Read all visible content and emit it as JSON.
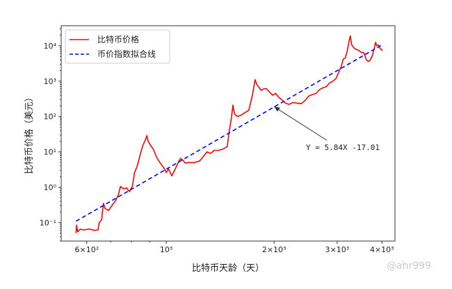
{
  "chart_data": {
    "type": "line",
    "title": "",
    "xlabel": "比特币天龄（天）",
    "ylabel": "比特币价格（美元）",
    "xscale": "log",
    "yscale": "log",
    "xlim": [
      509,
      4350
    ],
    "ylim": [
      0.03,
      37000
    ],
    "grid": false,
    "legend_placement": "top-left",
    "x_ticks": [
      {
        "value": 600,
        "label": "6×10²"
      },
      {
        "value": 1000,
        "label": "10³"
      },
      {
        "value": 2000,
        "label": "2×10³"
      },
      {
        "value": 3000,
        "label": "3×10³"
      },
      {
        "value": 4000,
        "label": "4×10³"
      }
    ],
    "y_ticks": [
      {
        "value": 0.1,
        "label": "10⁻¹"
      },
      {
        "value": 1,
        "label": "10⁰"
      },
      {
        "value": 10,
        "label": "10¹"
      },
      {
        "value": 100,
        "label": "10²"
      },
      {
        "value": 1000,
        "label": "10³"
      },
      {
        "value": 10000,
        "label": "10⁴"
      }
    ],
    "series": [
      {
        "name": "比特币价格",
        "color": "#ff0000",
        "style": "solid",
        "points": [
          [
            560,
            0.05
          ],
          [
            562,
            0.085
          ],
          [
            566,
            0.055
          ],
          [
            575,
            0.065
          ],
          [
            590,
            0.062
          ],
          [
            610,
            0.066
          ],
          [
            630,
            0.06
          ],
          [
            645,
            0.062
          ],
          [
            650,
            0.1
          ],
          [
            660,
            0.12
          ],
          [
            668,
            0.35
          ],
          [
            675,
            0.25
          ],
          [
            690,
            0.22
          ],
          [
            705,
            0.3
          ],
          [
            720,
            0.4
          ],
          [
            735,
            0.6
          ],
          [
            745,
            1.05
          ],
          [
            760,
            0.9
          ],
          [
            775,
            0.95
          ],
          [
            790,
            0.75
          ],
          [
            805,
            1.1
          ],
          [
            815,
            2.5
          ],
          [
            830,
            4
          ],
          [
            845,
            8
          ],
          [
            860,
            15
          ],
          [
            875,
            22
          ],
          [
            883,
            29
          ],
          [
            890,
            20
          ],
          [
            905,
            15
          ],
          [
            920,
            12
          ],
          [
            940,
            7
          ],
          [
            960,
            5
          ],
          [
            985,
            3.5
          ],
          [
            1000,
            2.6
          ],
          [
            1015,
            3.3
          ],
          [
            1036,
            2.1
          ],
          [
            1055,
            3
          ],
          [
            1075,
            4.5
          ],
          [
            1095,
            6.5
          ],
          [
            1110,
            6
          ],
          [
            1130,
            4.8
          ],
          [
            1160,
            5
          ],
          [
            1200,
            5
          ],
          [
            1240,
            5.5
          ],
          [
            1270,
            7.5
          ],
          [
            1300,
            10
          ],
          [
            1330,
            9
          ],
          [
            1360,
            11
          ],
          [
            1400,
            11
          ],
          [
            1440,
            12
          ],
          [
            1480,
            14
          ],
          [
            1500,
            40
          ],
          [
            1520,
            90
          ],
          [
            1535,
            210
          ],
          [
            1550,
            120
          ],
          [
            1580,
            100
          ],
          [
            1620,
            110
          ],
          [
            1660,
            130
          ],
          [
            1700,
            150
          ],
          [
            1740,
            400
          ],
          [
            1770,
            1100
          ],
          [
            1790,
            800
          ],
          [
            1810,
            700
          ],
          [
            1840,
            550
          ],
          [
            1870,
            600
          ],
          [
            1900,
            620
          ],
          [
            1940,
            500
          ],
          [
            1980,
            400
          ],
          [
            2020,
            450
          ],
          [
            2060,
            350
          ],
          [
            2100,
            300
          ],
          [
            2150,
            240
          ],
          [
            2200,
            220
          ],
          [
            2260,
            250
          ],
          [
            2320,
            240
          ],
          [
            2380,
            230
          ],
          [
            2440,
            280
          ],
          [
            2500,
            380
          ],
          [
            2560,
            420
          ],
          [
            2620,
            450
          ],
          [
            2680,
            580
          ],
          [
            2740,
            650
          ],
          [
            2800,
            700
          ],
          [
            2860,
            900
          ],
          [
            2920,
            1000
          ],
          [
            2980,
            1200
          ],
          [
            3030,
            1800
          ],
          [
            3080,
            2600
          ],
          [
            3120,
            4200
          ],
          [
            3160,
            4500
          ],
          [
            3200,
            7000
          ],
          [
            3240,
            14000
          ],
          [
            3265,
            19000
          ],
          [
            3290,
            11000
          ],
          [
            3330,
            9000
          ],
          [
            3380,
            8000
          ],
          [
            3440,
            7500
          ],
          [
            3500,
            6500
          ],
          [
            3560,
            6400
          ],
          [
            3620,
            4000
          ],
          [
            3660,
            3600
          ],
          [
            3700,
            3800
          ],
          [
            3760,
            5200
          ],
          [
            3810,
            8500
          ],
          [
            3840,
            12500
          ],
          [
            3870,
            10000
          ],
          [
            3910,
            10500
          ],
          [
            3950,
            8500
          ],
          [
            3990,
            7800
          ],
          [
            4010,
            7200
          ]
        ]
      },
      {
        "name": "币价指数拟合线",
        "color": "#0000ff",
        "style": "dashed",
        "fit": {
          "slope": 5.84,
          "intercept": -17.01
        },
        "x_range": [
          560,
          4010
        ]
      }
    ],
    "annotations": [
      {
        "text": "Y = 5.84X -17.01",
        "arrow_to": [
          2000,
          190
        ]
      }
    ]
  },
  "watermark": "@ahr999"
}
